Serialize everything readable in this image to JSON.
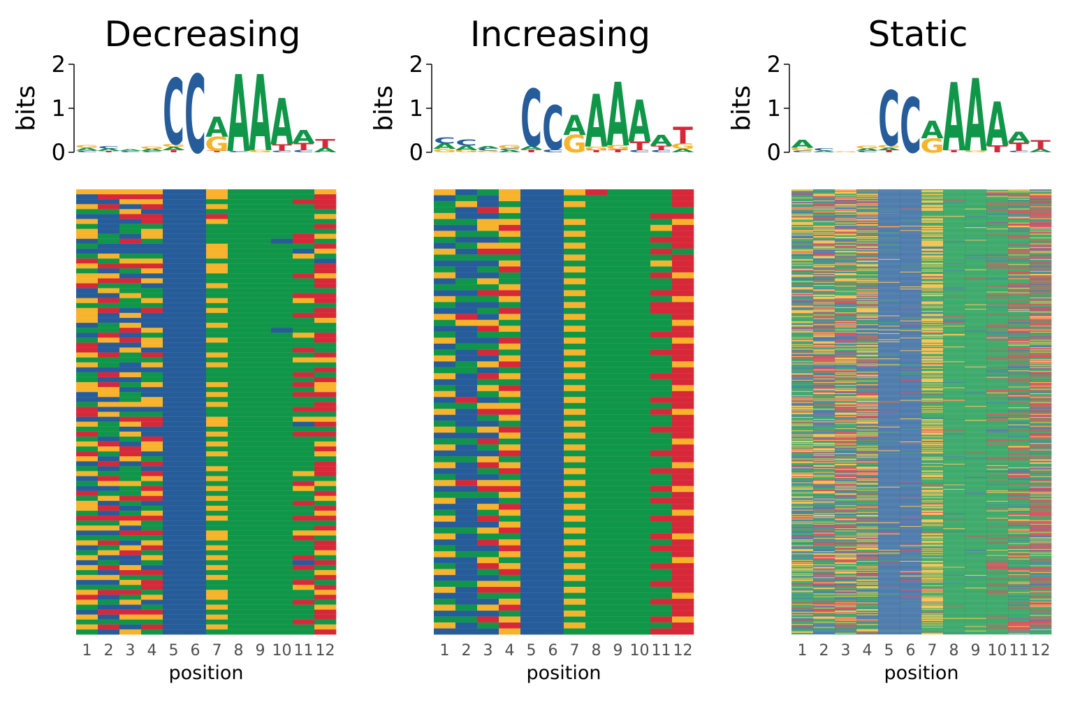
{
  "colors": {
    "A": "#109648",
    "C": "#255C99",
    "G": "#F7B32B",
    "T": "#D62839"
  },
  "chart_data": [
    {
      "type": "heatmap",
      "title": "Decreasing",
      "logo_ylabel": "bits",
      "logo_yticks": [
        "0",
        "1",
        "2"
      ],
      "logo_ylim": [
        0,
        2
      ],
      "xlabel": "position",
      "positions": [
        "1",
        "2",
        "3",
        "4",
        "5",
        "6",
        "7",
        "8",
        "9",
        "10",
        "11",
        "12"
      ],
      "logo_letters": [
        [
          [
            "C",
            0.04
          ],
          [
            "A",
            0.06
          ],
          [
            "G",
            0.06
          ]
        ],
        [
          [
            "T",
            0.03
          ],
          [
            "A",
            0.06
          ],
          [
            "C",
            0.05
          ]
        ],
        [
          [
            "C",
            0.03
          ],
          [
            "A",
            0.04
          ]
        ],
        [
          [
            "C",
            0.03
          ],
          [
            "A",
            0.05
          ],
          [
            "G",
            0.05
          ]
        ],
        [
          [
            "T",
            0.05
          ],
          [
            "A",
            0.08
          ],
          [
            "G",
            0.06
          ],
          [
            "C",
            1.5
          ]
        ],
        [
          [
            "C",
            1.78
          ]
        ],
        [
          [
            "T",
            0.04
          ],
          [
            "G",
            0.32
          ],
          [
            "A",
            0.45
          ]
        ],
        [
          [
            "C",
            0.03
          ],
          [
            "A",
            1.75
          ]
        ],
        [
          [
            "G",
            0.05
          ],
          [
            "A",
            1.73
          ]
        ],
        [
          [
            "C",
            0.04
          ],
          [
            "T",
            0.14
          ],
          [
            "A",
            1.05
          ]
        ],
        [
          [
            "C",
            0.05
          ],
          [
            "T",
            0.16
          ],
          [
            "A",
            0.3
          ]
        ],
        [
          [
            "A",
            0.1
          ],
          [
            "T",
            0.2
          ]
        ]
      ],
      "sequences": {
        "n_rows": 90,
        "columns": [
          "GGGGCCGAAAAG",
          "CTTTCCGAAAAT",
          "CCGGCCAAAATT",
          "GTCTCCGAAAAT",
          "AAGCCCAAAAAA",
          "CCTTCCTAAAAG",
          "GCCTCCGAAAAA",
          "ACAACCAAAAAT",
          "GCAGCCAAAAAA",
          "GACGCCAAAATG",
          "CATACCAAACTA",
          "ACCCCCGAAAAT",
          "CCCCCCGAAACG",
          "AGAACCGAAAGA",
          "TAGGCCAAAAAC",
          "GTTTCCGAAAAT",
          "ACAGCCGAAAAT",
          "GGCCCCAAAATG",
          "GTTGCCAAAAAT",
          "TAACCCGAAAAT",
          "CGAACCAAAAAA",
          "CCGACCAAAATT",
          "GTAGCCGAAAGT",
          "AAAACCAAAAAA",
          "GTCTCCGAAAAT",
          "GCGCCCAAAATT",
          "GCCCCCAAAAAG",
          "CAGCCCGAAAAA",
          "AATGCCAAACAA",
          "CTCACCAAAAGT",
          "AGTGCCGAAAAT",
          "TCCGCCAAAAAA",
          "TCGCCCAAAATA",
          "GTATCCGAAAAT",
          "AAAACCAAAAGG",
          "GACGCCGAAAAA",
          "CCCCCCAAAAAT",
          "ATGACCAAAATA",
          "ACCACCAAAAAT",
          "GTAGCCGAAATG",
          "GGCCCCAAAAAG",
          "CGACCCGAAATT",
          "CCAGCCAAAAAA",
          "AGGGCCGAAAAT",
          "TCCCCCAAAATT",
          "TGAACCAAAAAA",
          "CCTTCCGAAAGG",
          "GAGTCCGAAACT",
          "AACCCCAAAAAA",
          "TAGCCCGAAATT",
          "ACATCCAAAAAA",
          "GTCGCCGAAAAG",
          "AGTGCCAAAAAT",
          "TATCCCGAAAAG",
          "GCGACCAAAAAA",
          "CTCTCCAAAAAT",
          "ACACCCGAAAAT",
          "GAATCCAAAAGT",
          "CTAGCCGAAAAA",
          "AGGACCAAAATG",
          "CCATCCGAAAGA",
          "TAAGCCAAAAAT",
          "AGTTCCGAAAAG",
          "GCACCCAAAATA",
          "GTCACCGAAAAT",
          "ACAGCCAAAAAG",
          "TTTTCCGAAATT",
          "AAGACCAAAAAA",
          "GGCACCAAAAAT",
          "CCTTCCGAAAGG",
          "AAAACCGAAATA",
          "GTCGCCAAAAAT",
          "CAGTCCGAAAAT",
          "AGTACCAAAAAG",
          "GCCGCCGAAATA",
          "CACACCAAAACT",
          "GTGCCCGAAATA",
          "ACTTCCAAAAAG",
          "GGAACCGAAAAT",
          "CCGTCCAAAATA",
          "AAATCCAAAAGT",
          "GTTACCGAAAAG",
          "TCAGCCGAAAAT",
          "GAGCCCAAAATA",
          "ACCACCGAAAAG",
          "CTTTCCAAAAAT",
          "GCGGCCGAAAAT",
          "AAAACCAAAATA",
          "GTCTCCGAAAAG",
          "ACGACCAAAAAT"
        ]
      }
    },
    {
      "type": "heatmap",
      "title": "Increasing",
      "logo_ylabel": "bits",
      "logo_yticks": [
        "0",
        "1",
        "2"
      ],
      "logo_ylim": [
        0,
        2
      ],
      "xlabel": "position",
      "positions": [
        "1",
        "2",
        "3",
        "4",
        "5",
        "6",
        "7",
        "8",
        "9",
        "10",
        "11",
        "12"
      ],
      "logo_letters": [
        [
          [
            "G",
            0.08
          ],
          [
            "A",
            0.12
          ],
          [
            "C",
            0.14
          ]
        ],
        [
          [
            "G",
            0.05
          ],
          [
            "A",
            0.1
          ],
          [
            "C",
            0.14
          ]
        ],
        [
          [
            "G",
            0.04
          ],
          [
            "C",
            0.05
          ],
          [
            "A",
            0.05
          ]
        ],
        [
          [
            "A",
            0.05
          ],
          [
            "C",
            0.04
          ],
          [
            "G",
            0.08
          ]
        ],
        [
          [
            "T",
            0.06
          ],
          [
            "A",
            0.08
          ],
          [
            "C",
            1.3
          ]
        ],
        [
          [
            "C",
            0.06
          ],
          [
            "C",
            1.0
          ]
        ],
        [
          [
            "G",
            0.4
          ],
          [
            "A",
            0.45
          ]
        ],
        [
          [
            "T",
            0.05
          ],
          [
            "G",
            0.08
          ],
          [
            "A",
            1.2
          ]
        ],
        [
          [
            "T",
            0.06
          ],
          [
            "G",
            0.1
          ],
          [
            "A",
            1.45
          ]
        ],
        [
          [
            "C",
            0.05
          ],
          [
            "T",
            0.2
          ],
          [
            "A",
            0.95
          ]
        ],
        [
          [
            "C",
            0.05
          ],
          [
            "T",
            0.1
          ],
          [
            "A",
            0.25
          ]
        ],
        [
          [
            "A",
            0.08
          ],
          [
            "G",
            0.12
          ],
          [
            "T",
            0.38
          ]
        ]
      ],
      "sequences": {
        "n_rows": 75,
        "columns": [
          "GCAGCCGTAAAT",
          "CACGCCAAAAAT",
          "AGCACCGAAAAT",
          "ACTGCCAAAAAA",
          "GCCACCAAAATT",
          "AAGGCCGAAAAG",
          "CCGTCCAAAAGT",
          "GAAGCCGAAAAT",
          "ACCACCAAAATT",
          "CAGGCCGAAAAT",
          "GCTTCCAAAATA",
          "AAAACCGAAAAT",
          "CCCGCCAAAAGT",
          "ACATCCGAAAAT",
          "GCCACCAAAATG",
          "CAGACCGAAAAT",
          "AAAGCCAAAAAT",
          "CCTTCCGAAATT",
          "GAAGCCAAAAAG",
          "ACCACCGAAATT",
          "CCATCCAAAATT",
          "GTCGCCGAAAAT",
          "AGGACCAAAAAG",
          "CCTGCCGAAAAT",
          "ACAACCAAAATT",
          "GCCTCCGAAAAG",
          "CAAGCCAAAAAT",
          "ACTACCGAAATT",
          "GCCGCCAAAAAT",
          "CAGTCCGAAAAG",
          "AACACCAAAAAT",
          "GCTGCCGAAATT",
          "CCAACCAAAAAT",
          "ACGTCCGAAAAG",
          "GCAGCCAAAAAT",
          "CTCACCGAAATT",
          "AAGGCCAAAAAT",
          "GCTTCCGAAATG",
          "CCAGCCAAAAAT",
          "ACCACCGAAAAT",
          "GAGTCCAAAATT",
          "CCCGCCGAAAAT",
          "AATACCAAAAAG",
          "GCAGCCGAAAAT",
          "CCCTCCAAAATT",
          "AAGACCGAAAAT",
          "GCTGCCAAAAAG",
          "CCATCCGAAATT",
          "ACCACCAAAAAT",
          "GTGGCCGAAAAT",
          "CCTTCCAAAATG",
          "AAAGCCGAAAAT",
          "GCCACCAAAATT",
          "CCGTCCGAAAAT",
          "ACAGCCAAAAAG",
          "GCTACCGAAATT",
          "CCCGCCAAAAAT",
          "AAGTCCGAAAAT",
          "GCAACCAAAATG",
          "CCTGCCGAAAAT",
          "ACCTCCAAAATT",
          "GAAGCCGAAAAT",
          "CCGACCAAAAAG",
          "ACTGCCGAAATT",
          "GCATCCAAAAAT",
          "CCCACCGAAAAT",
          "AAGGCCAAAATT",
          "GCTTCCGAAAAT",
          "CCAACCAAAAAG",
          "ACCGCCGAAATT",
          "GAGTCCAAAAAT",
          "CCCACCGAAAAT",
          "AATGCCAAAATG",
          "GCATCCGAAAAT",
          "CCCGCCAAAATT"
        ]
      }
    },
    {
      "type": "heatmap",
      "title": "Static",
      "logo_ylabel": "bits",
      "logo_yticks": [
        "0",
        "1",
        "2"
      ],
      "logo_ylim": [
        0,
        2
      ],
      "xlabel": "position",
      "positions": [
        "1",
        "2",
        "3",
        "4",
        "5",
        "6",
        "7",
        "8",
        "9",
        "10",
        "11",
        "12"
      ],
      "logo_letters": [
        [
          [
            "C",
            0.04
          ],
          [
            "G",
            0.06
          ],
          [
            "A",
            0.18
          ]
        ],
        [
          [
            "A",
            0.04
          ],
          [
            "C",
            0.05
          ]
        ],
        [
          [
            "G",
            0.02
          ]
        ],
        [
          [
            "C",
            0.04
          ],
          [
            "A",
            0.05
          ],
          [
            "G",
            0.06
          ]
        ],
        [
          [
            "T",
            0.05
          ],
          [
            "A",
            0.05
          ],
          [
            "G",
            0.06
          ],
          [
            "C",
            1.25
          ]
        ],
        [
          [
            "C",
            1.25
          ]
        ],
        [
          [
            "G",
            0.32
          ],
          [
            "A",
            0.4
          ]
        ],
        [
          [
            "T",
            0.05
          ],
          [
            "A",
            1.55
          ]
        ],
        [
          [
            "G",
            0.04
          ],
          [
            "A",
            1.65
          ]
        ],
        [
          [
            "T",
            0.15
          ],
          [
            "A",
            1.0
          ]
        ],
        [
          [
            "C",
            0.04
          ],
          [
            "T",
            0.18
          ],
          [
            "A",
            0.25
          ]
        ],
        [
          [
            "A",
            0.08
          ],
          [
            "T",
            0.2
          ]
        ]
      ],
      "sequences": {
        "n_rows": 600,
        "column_probabilities": [
          {
            "A": 0.42,
            "C": 0.22,
            "G": 0.26,
            "T": 0.1
          },
          {
            "A": 0.3,
            "C": 0.25,
            "G": 0.25,
            "T": 0.2
          },
          {
            "A": 0.3,
            "C": 0.22,
            "G": 0.28,
            "T": 0.2
          },
          {
            "A": 0.3,
            "C": 0.24,
            "G": 0.31,
            "T": 0.15
          },
          {
            "A": 0.03,
            "C": 0.92,
            "G": 0.03,
            "T": 0.02
          },
          {
            "A": 0.02,
            "C": 0.94,
            "G": 0.02,
            "T": 0.02
          },
          {
            "A": 0.52,
            "C": 0.04,
            "G": 0.4,
            "T": 0.04
          },
          {
            "A": 0.94,
            "C": 0.02,
            "G": 0.02,
            "T": 0.02
          },
          {
            "A": 0.95,
            "C": 0.02,
            "G": 0.02,
            "T": 0.01
          },
          {
            "A": 0.78,
            "C": 0.04,
            "G": 0.04,
            "T": 0.14
          },
          {
            "A": 0.55,
            "C": 0.1,
            "G": 0.12,
            "T": 0.23
          },
          {
            "A": 0.34,
            "C": 0.14,
            "G": 0.17,
            "T": 0.35
          }
        ]
      }
    }
  ]
}
